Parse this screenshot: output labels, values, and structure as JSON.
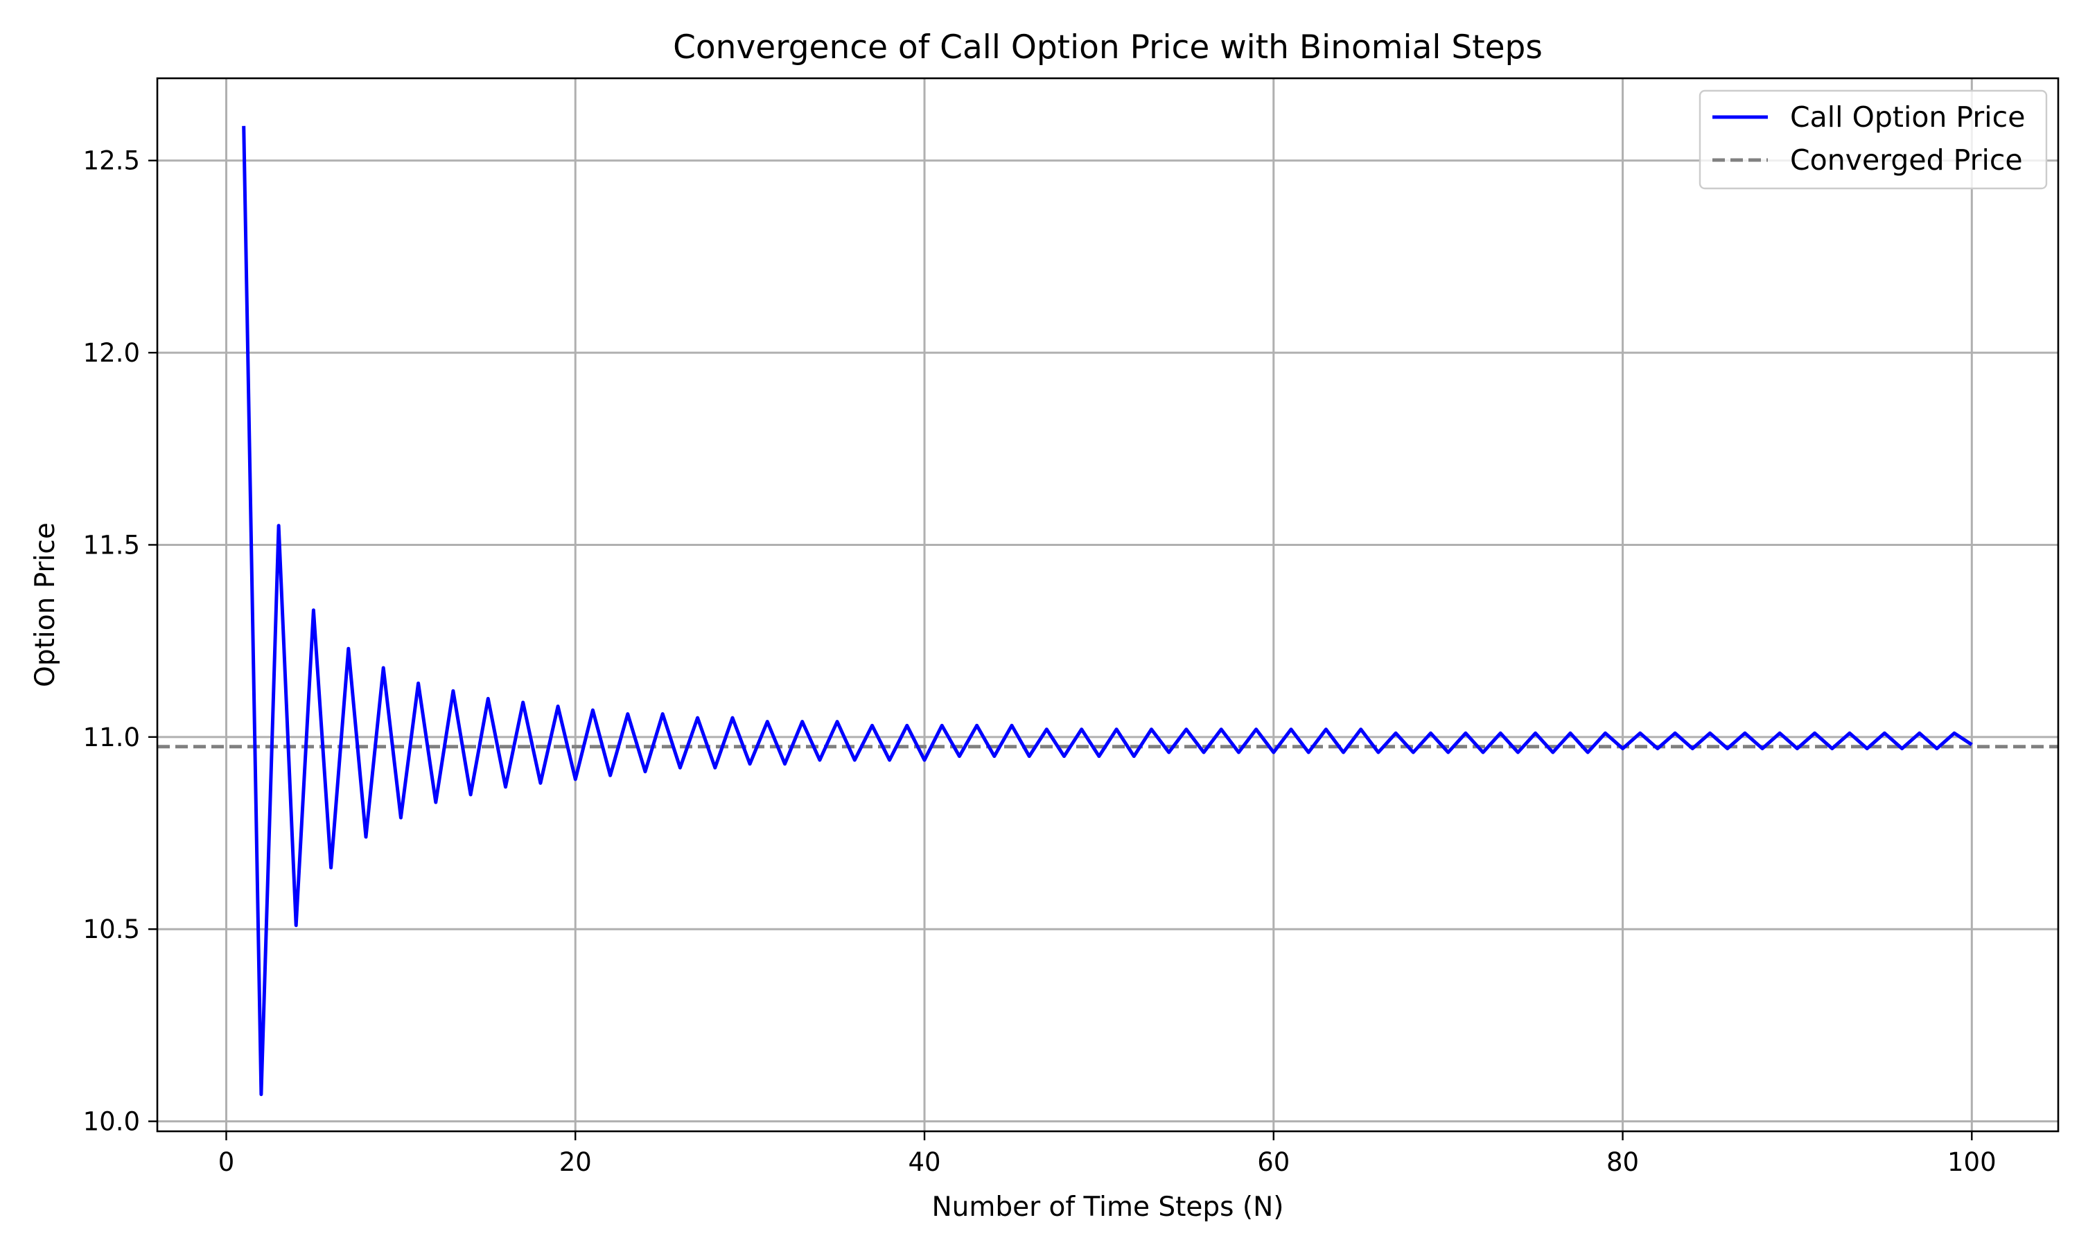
{
  "chart_data": {
    "type": "line",
    "title": "Convergence of Call Option Price with Binomial Steps",
    "xlabel": "Number of Time Steps (N)",
    "ylabel": "Option Price",
    "xlim": [
      -3.95,
      104.95
    ],
    "ylim": [
      9.974,
      12.714
    ],
    "xticks": [
      0,
      20,
      40,
      60,
      80,
      100
    ],
    "xtick_labels": [
      "0",
      "20",
      "40",
      "60",
      "80",
      "100"
    ],
    "yticks": [
      10.0,
      10.5,
      11.0,
      11.5,
      12.0,
      12.5
    ],
    "ytick_labels": [
      "10.0",
      "10.5",
      "11.0",
      "11.5",
      "12.0",
      "12.5"
    ],
    "grid": true,
    "legend_position": "top-right",
    "series": [
      {
        "name": "Call Option Price",
        "color": "#0000ff",
        "style": "solid",
        "x": [
          1,
          2,
          3,
          4,
          5,
          6,
          7,
          8,
          9,
          10,
          11,
          12,
          13,
          14,
          15,
          16,
          17,
          18,
          19,
          20,
          21,
          22,
          23,
          24,
          25,
          26,
          27,
          28,
          29,
          30,
          31,
          32,
          33,
          34,
          35,
          36,
          37,
          38,
          39,
          40,
          41,
          42,
          43,
          44,
          45,
          46,
          47,
          48,
          49,
          50,
          51,
          52,
          53,
          54,
          55,
          56,
          57,
          58,
          59,
          60,
          61,
          62,
          63,
          64,
          65,
          66,
          67,
          68,
          69,
          70,
          71,
          72,
          73,
          74,
          75,
          76,
          77,
          78,
          79,
          80,
          81,
          82,
          83,
          84,
          85,
          86,
          87,
          88,
          89,
          90,
          91,
          92,
          93,
          94,
          95,
          96,
          97,
          98,
          99,
          100
        ],
        "values": [
          12.59,
          10.07,
          11.55,
          10.51,
          11.33,
          10.66,
          11.23,
          10.74,
          11.18,
          10.79,
          11.14,
          10.83,
          11.12,
          10.85,
          11.1,
          10.87,
          11.09,
          10.88,
          11.08,
          10.89,
          11.07,
          10.9,
          11.06,
          10.91,
          11.06,
          10.92,
          11.05,
          10.92,
          11.05,
          10.93,
          11.04,
          10.93,
          11.04,
          10.94,
          11.04,
          10.94,
          11.03,
          10.94,
          11.03,
          10.94,
          11.03,
          10.95,
          11.03,
          10.95,
          11.03,
          10.95,
          11.02,
          10.95,
          11.02,
          10.95,
          11.02,
          10.95,
          11.02,
          10.96,
          11.02,
          10.96,
          11.02,
          10.96,
          11.02,
          10.96,
          11.02,
          10.96,
          11.02,
          10.96,
          11.02,
          10.96,
          11.01,
          10.96,
          11.01,
          10.96,
          11.01,
          10.96,
          11.01,
          10.96,
          11.01,
          10.96,
          11.01,
          10.96,
          11.01,
          10.97,
          11.01,
          10.97,
          11.01,
          10.97,
          11.01,
          10.97,
          11.01,
          10.97,
          11.01,
          10.97,
          11.01,
          10.97,
          11.01,
          10.97,
          11.01,
          10.97,
          11.01,
          10.97,
          11.01,
          10.98
        ]
      },
      {
        "name": "Converged Price",
        "color": "#808080",
        "style": "dashed",
        "y": 10.975
      }
    ]
  }
}
